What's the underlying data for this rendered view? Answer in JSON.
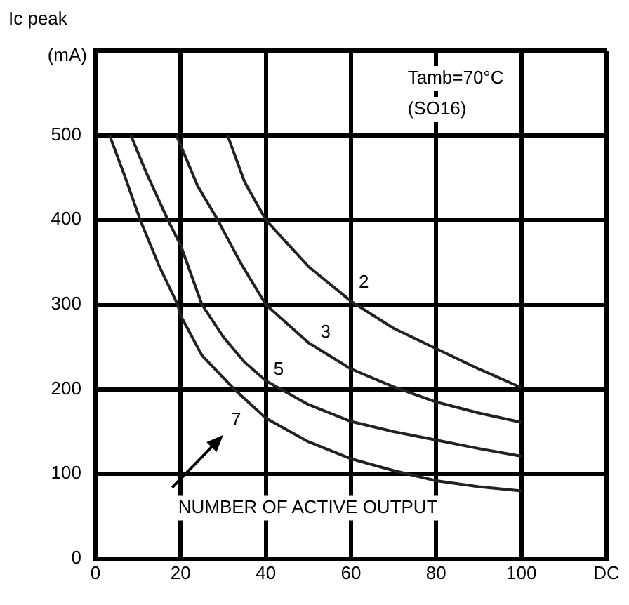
{
  "chart_data": {
    "type": "line",
    "ylabel": "Ic peak (mA)",
    "xlim": [
      0,
      120
    ],
    "xticks": [
      0,
      20,
      40,
      60,
      80,
      100,
      {
        "value": 120,
        "label": "DC"
      }
    ],
    "ylim": [
      0,
      600
    ],
    "yticks": [
      0,
      100,
      200,
      300,
      400,
      500,
      {
        "value": 600,
        "label": null
      }
    ],
    "grid": true,
    "legend": false,
    "marker": "none",
    "line_style": "solid",
    "series": [
      {
        "color": "#222222",
        "x": [
          31,
          35,
          40,
          50,
          60,
          70,
          80,
          90,
          100
        ],
        "values": [
          500,
          445,
          400,
          345,
          304,
          272,
          248,
          224,
          202
        ]
      },
      {
        "color": "#222222",
        "x": [
          19,
          20,
          24,
          28.7,
          34,
          40,
          50,
          60,
          70,
          80,
          90,
          100
        ],
        "values": [
          500,
          488,
          440,
          400,
          350,
          300,
          255,
          224,
          203,
          185,
          172,
          161
        ]
      },
      {
        "color": "#222222",
        "x": [
          8.3,
          12,
          17,
          20,
          25,
          30,
          35,
          40,
          50,
          60,
          70,
          80,
          90,
          100
        ],
        "values": [
          500,
          455,
          400,
          370,
          300,
          262,
          232,
          210,
          182,
          162,
          150,
          140,
          130,
          121
        ]
      },
      {
        "color": "#222222",
        "x": [
          3.3,
          7,
          10.5,
          15,
          19.3,
          20,
          25,
          32.6,
          40,
          50,
          60,
          70,
          80,
          90,
          100
        ],
        "values": [
          500,
          450,
          400,
          345,
          300,
          287,
          240,
          200,
          166,
          138,
          118,
          104,
          92,
          85,
          80
        ]
      }
    ],
    "annotations": [
      "Tamb=70°C",
      "(SO16)",
      {
        "text": "2",
        "x": 63,
        "y": 326
      },
      {
        "text": "3",
        "x": 54,
        "y": 267
      },
      {
        "text": "5",
        "x": 43,
        "y": 223
      },
      {
        "text": "7",
        "x": 33,
        "y": 163
      },
      "NUMBER OF ACTIVE OUTPUT"
    ]
  }
}
